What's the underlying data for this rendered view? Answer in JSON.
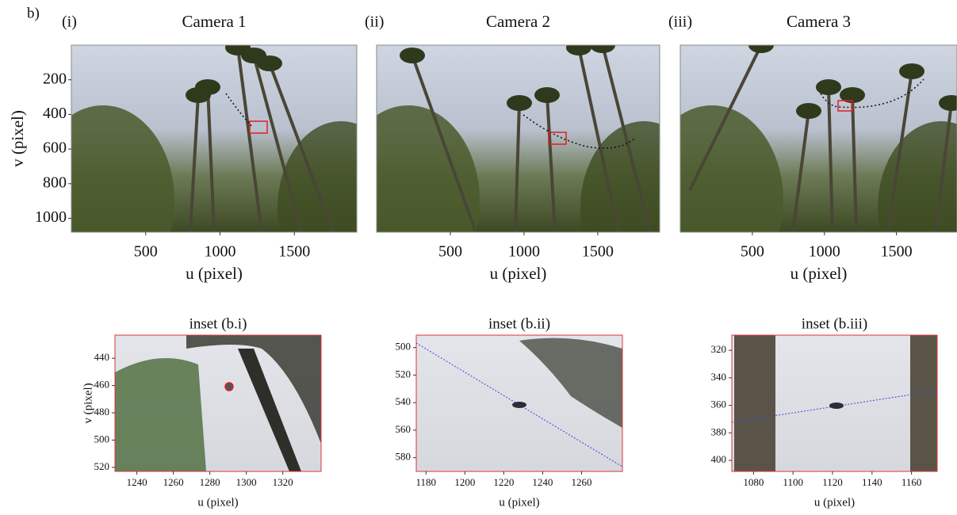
{
  "figure_label": "b)",
  "chart_data": [
    {
      "type": "image",
      "panel_label": "(i)",
      "title": "Camera 1",
      "xlabel": "u (pixel)",
      "ylabel": "v (pixel)",
      "xlim": [
        0,
        1920
      ],
      "ylim": [
        1080,
        0
      ],
      "xticks": [
        500,
        1000,
        1500
      ],
      "yticks": [
        200,
        400,
        600,
        800,
        1000
      ]
    },
    {
      "type": "image",
      "panel_label": "(ii)",
      "title": "Camera 2",
      "xlabel": "u (pixel)",
      "xlim": [
        0,
        1920
      ],
      "ylim": [
        1080,
        0
      ],
      "xticks": [
        500,
        1000,
        1500
      ]
    },
    {
      "type": "image",
      "panel_label": "(iii)",
      "title": "Camera 3",
      "xlabel": "u (pixel)",
      "xlim": [
        0,
        1920
      ],
      "ylim": [
        1080,
        0
      ],
      "xticks": [
        500,
        1000,
        1500
      ]
    },
    {
      "type": "inset",
      "title": "inset (b.i)",
      "xlabel": "u (pixel)",
      "ylabel": "v (pixel)",
      "xlim": [
        1228,
        1341
      ],
      "ylim": [
        523,
        423
      ],
      "xticks": [
        1240,
        1260,
        1280,
        1300,
        1320
      ],
      "yticks": [
        440,
        460,
        480,
        500,
        520
      ]
    },
    {
      "type": "inset",
      "title": "inset (b.ii)",
      "xlabel": "u (pixel)",
      "xlim": [
        1175,
        1281
      ],
      "ylim": [
        590,
        491
      ],
      "xticks": [
        1180,
        1200,
        1220,
        1240,
        1260
      ],
      "yticks": [
        500,
        520,
        540,
        560,
        580
      ]
    },
    {
      "type": "inset",
      "title": "inset (b.iii)",
      "xlabel": "u (pixel)",
      "xlim": [
        1069,
        1173
      ],
      "ylim": [
        408,
        309
      ],
      "xticks": [
        1080,
        1100,
        1120,
        1140,
        1160
      ],
      "yticks": [
        320,
        340,
        360,
        380,
        400
      ]
    }
  ]
}
